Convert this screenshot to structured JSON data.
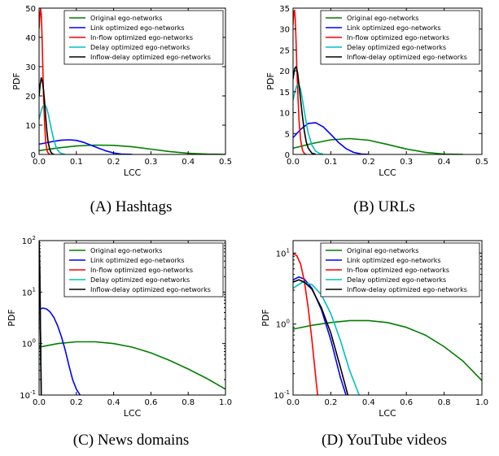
{
  "legend": [
    {
      "name": "Original ego-networks",
      "color": "#007f00"
    },
    {
      "name": "Link optimized ego-networks",
      "color": "#0000ff"
    },
    {
      "name": "In-flow optimized ego-networks",
      "color": "#ff0000"
    },
    {
      "name": "Delay optimized ego-networks",
      "color": "#00bfbf"
    },
    {
      "name": "Inflow-delay optimized ego-networks",
      "color": "#000000"
    }
  ],
  "chart_data": [
    {
      "type": "line",
      "caption": "(A) Hashtags",
      "xlabel": "LCC",
      "ylabel": "PDF",
      "xlim": [
        0,
        0.5
      ],
      "ylim": [
        0,
        50
      ],
      "yscale": "linear",
      "xticks": [
        "0.0",
        "0.1",
        "0.2",
        "0.3",
        "0.4",
        "0.5"
      ],
      "yticks": [
        "0",
        "10",
        "20",
        "30",
        "40",
        "50"
      ],
      "legend_position": "top-right",
      "series": [
        {
          "name": "Original ego-networks",
          "x": [
            0,
            0.05,
            0.1,
            0.15,
            0.2,
            0.25,
            0.3,
            0.35,
            0.4,
            0.45,
            0.5
          ],
          "y": [
            1.3,
            2.2,
            2.9,
            3.2,
            3.1,
            2.6,
            1.8,
            1.0,
            0.4,
            0.1,
            0.02
          ]
        },
        {
          "name": "Link optimized ego-networks",
          "x": [
            0,
            0.02,
            0.04,
            0.06,
            0.08,
            0.1,
            0.12,
            0.14,
            0.16,
            0.18,
            0.2,
            0.22,
            0.25
          ],
          "y": [
            3.5,
            4.0,
            4.5,
            4.9,
            5.0,
            4.8,
            4.1,
            3.1,
            2.1,
            1.2,
            0.5,
            0.15,
            0.02
          ]
        },
        {
          "name": "In-flow optimized ego-networks",
          "x": [
            0,
            0.002,
            0.004,
            0.006,
            0.008,
            0.01,
            0.012,
            0.015,
            0.018,
            0.022,
            0.026,
            0.03
          ],
          "y": [
            43,
            47,
            49.8,
            48,
            40,
            30,
            20,
            10,
            4,
            1,
            0.2,
            0.02
          ]
        },
        {
          "name": "Delay optimized ego-networks",
          "x": [
            0,
            0.005,
            0.01,
            0.015,
            0.02,
            0.025,
            0.03,
            0.035,
            0.04,
            0.045,
            0.05,
            0.055,
            0.06,
            0.07
          ],
          "y": [
            12,
            14.5,
            16.5,
            17,
            16,
            13.5,
            10.5,
            7.5,
            4.8,
            2.8,
            1.5,
            0.7,
            0.3,
            0.03
          ]
        },
        {
          "name": "Inflow-delay optimized ego-networks",
          "x": [
            0,
            0.003,
            0.006,
            0.009,
            0.012,
            0.015,
            0.018,
            0.021,
            0.024,
            0.028,
            0.032,
            0.036,
            0.04
          ],
          "y": [
            20,
            24,
            26.2,
            25,
            22,
            17.5,
            12.5,
            8,
            4.5,
            2,
            0.7,
            0.2,
            0.02
          ]
        }
      ]
    },
    {
      "type": "line",
      "caption": "(B) URLs",
      "xlabel": "LCC",
      "ylabel": "PDF",
      "xlim": [
        0,
        0.5
      ],
      "ylim": [
        0,
        35
      ],
      "yscale": "linear",
      "xticks": [
        "0.0",
        "0.1",
        "0.2",
        "0.3",
        "0.4",
        "0.5"
      ],
      "yticks": [
        "0",
        "5",
        "10",
        "15",
        "20",
        "25",
        "30",
        "35"
      ],
      "legend_position": "top-right",
      "series": [
        {
          "name": "Original ego-networks",
          "x": [
            0,
            0.05,
            0.1,
            0.15,
            0.2,
            0.25,
            0.3,
            0.35,
            0.4,
            0.45
          ],
          "y": [
            1.5,
            2.6,
            3.5,
            3.8,
            3.4,
            2.4,
            1.3,
            0.5,
            0.1,
            0.01
          ]
        },
        {
          "name": "Link optimized ego-networks",
          "x": [
            0,
            0.02,
            0.04,
            0.06,
            0.08,
            0.1,
            0.12,
            0.14,
            0.16,
            0.18,
            0.2
          ],
          "y": [
            4.0,
            6.0,
            7.4,
            7.6,
            6.6,
            4.8,
            2.9,
            1.4,
            0.5,
            0.12,
            0.02
          ]
        },
        {
          "name": "In-flow optimized ego-networks",
          "x": [
            0,
            0.002,
            0.004,
            0.006,
            0.008,
            0.01,
            0.013,
            0.016,
            0.02,
            0.025,
            0.03,
            0.035
          ],
          "y": [
            31,
            34,
            34.5,
            32,
            27,
            21,
            14,
            8,
            3.5,
            1,
            0.2,
            0.02
          ]
        },
        {
          "name": "Delay optimized ego-networks",
          "x": [
            0,
            0.005,
            0.01,
            0.015,
            0.02,
            0.025,
            0.03,
            0.035,
            0.04,
            0.05,
            0.06,
            0.07,
            0.08
          ],
          "y": [
            13,
            15,
            16.5,
            16.8,
            15.5,
            13,
            10.3,
            7.6,
            5.2,
            2.2,
            0.8,
            0.25,
            0.05
          ]
        },
        {
          "name": "Inflow-delay optimized ego-networks",
          "x": [
            0,
            0.004,
            0.008,
            0.012,
            0.016,
            0.02,
            0.025,
            0.03,
            0.035,
            0.04,
            0.05,
            0.06
          ],
          "y": [
            18,
            20.5,
            21,
            19.5,
            16.5,
            13,
            9,
            5.5,
            3,
            1.5,
            0.3,
            0.05
          ]
        }
      ]
    },
    {
      "type": "line",
      "caption": "(C) News domains",
      "xlabel": "LCC",
      "ylabel": "PDF",
      "xlim": [
        0,
        1.0
      ],
      "ylim": [
        0.1,
        100
      ],
      "yscale": "log",
      "xticks": [
        "0.0",
        "0.2",
        "0.4",
        "0.6",
        "0.8",
        "1.0"
      ],
      "yticks": [
        "10^-1",
        "10^0",
        "10^1",
        "10^2"
      ],
      "legend_position": "top-right",
      "series": [
        {
          "name": "Original ego-networks",
          "x": [
            0,
            0.1,
            0.2,
            0.3,
            0.4,
            0.5,
            0.6,
            0.7,
            0.8,
            0.9,
            1.0
          ],
          "y": [
            0.85,
            1.0,
            1.08,
            1.08,
            1.0,
            0.85,
            0.66,
            0.47,
            0.32,
            0.21,
            0.13
          ]
        },
        {
          "name": "Link optimized ego-networks",
          "x": [
            0,
            0.02,
            0.04,
            0.06,
            0.08,
            0.1,
            0.12,
            0.14,
            0.16,
            0.18,
            0.2,
            0.22
          ],
          "y": [
            4.6,
            4.9,
            4.7,
            4.1,
            3.2,
            2.2,
            1.35,
            0.75,
            0.38,
            0.2,
            0.13,
            0.1
          ]
        },
        {
          "name": "In-flow optimized ego-networks",
          "x": [
            0,
            0.003,
            0.006,
            0.009,
            0.012
          ],
          "y": [
            100,
            40,
            5,
            0.5,
            0.1
          ]
        },
        {
          "name": "Delay optimized ego-networks",
          "x": [
            0,
            0.003,
            0.006,
            0.009,
            0.012
          ],
          "y": [
            100,
            40,
            5,
            0.5,
            0.1
          ]
        },
        {
          "name": "Inflow-delay optimized ego-networks",
          "x": [
            0,
            0.003,
            0.006,
            0.009,
            0.012
          ],
          "y": [
            100,
            40,
            5,
            0.5,
            0.1
          ]
        }
      ]
    },
    {
      "type": "line",
      "caption": "(D) YouTube videos",
      "xlabel": "LCC",
      "ylabel": "PDF",
      "xlim": [
        0,
        1.0
      ],
      "ylim": [
        0.1,
        15
      ],
      "yscale": "log",
      "xticks": [
        "0.0",
        "0.2",
        "0.4",
        "0.6",
        "0.8",
        "1.0"
      ],
      "yticks": [
        "10^-1",
        "10^0",
        "10^1"
      ],
      "legend_position": "top-right",
      "series": [
        {
          "name": "Original ego-networks",
          "x": [
            0,
            0.1,
            0.2,
            0.3,
            0.4,
            0.5,
            0.6,
            0.7,
            0.8,
            0.9,
            1.0
          ],
          "y": [
            0.85,
            0.96,
            1.05,
            1.12,
            1.12,
            1.05,
            0.9,
            0.7,
            0.48,
            0.3,
            0.16
          ]
        },
        {
          "name": "Link optimized ego-networks",
          "x": [
            0,
            0.03,
            0.06,
            0.1,
            0.15,
            0.2,
            0.25,
            0.28
          ],
          "y": [
            4.2,
            4.6,
            4.3,
            3.2,
            1.6,
            0.6,
            0.18,
            0.1
          ]
        },
        {
          "name": "In-flow optimized ego-networks",
          "x": [
            0,
            0.02,
            0.04,
            0.06,
            0.08,
            0.1,
            0.12,
            0.13
          ],
          "y": [
            9.8,
            9.2,
            7.0,
            4.0,
            1.7,
            0.6,
            0.18,
            0.1
          ]
        },
        {
          "name": "Delay optimized ego-networks",
          "x": [
            0,
            0.05,
            0.1,
            0.15,
            0.2,
            0.25,
            0.3,
            0.35
          ],
          "y": [
            3.2,
            3.9,
            3.6,
            2.6,
            1.4,
            0.6,
            0.22,
            0.1
          ]
        },
        {
          "name": "Inflow-delay optimized ego-networks",
          "x": [
            0,
            0.03,
            0.06,
            0.1,
            0.15,
            0.2,
            0.25,
            0.29
          ],
          "y": [
            3.9,
            4.2,
            3.9,
            3.1,
            1.7,
            0.75,
            0.25,
            0.1
          ]
        }
      ]
    }
  ]
}
